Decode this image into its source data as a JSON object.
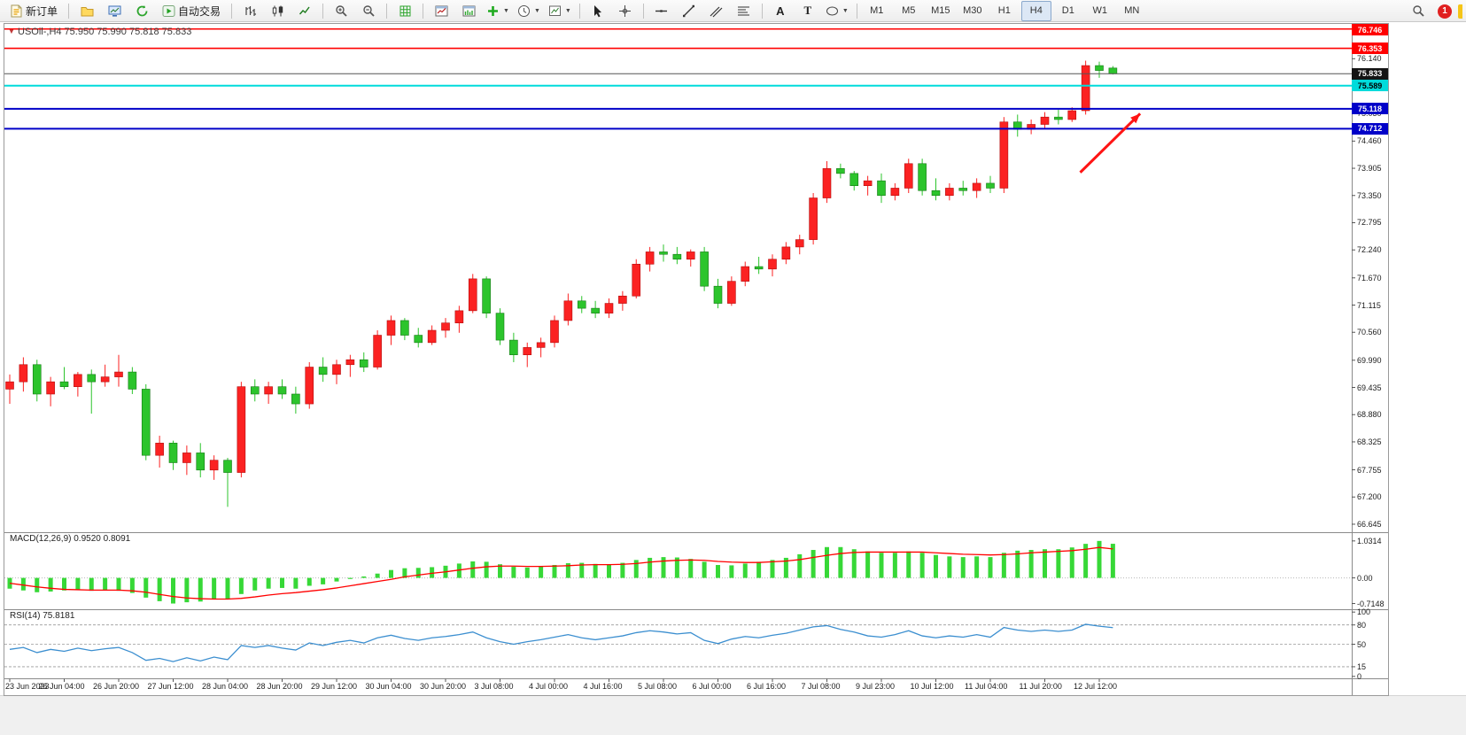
{
  "toolbar": {
    "new_order_label": "新订单",
    "auto_trading_label": "自动交易",
    "text_tool_label": "A",
    "label_tool_label": "T",
    "timeframes": [
      "M1",
      "M5",
      "M15",
      "M30",
      "H1",
      "H4",
      "D1",
      "W1",
      "MN"
    ],
    "active_timeframe": "H4",
    "notification_count": "1"
  },
  "chart_data": [
    {
      "type": "candlestick",
      "symbol": "USOil-",
      "timeframe": "H4",
      "title": "USOil-,H4 75.950 75.990 75.818 75.833",
      "ohlc_current": {
        "open": 75.95,
        "high": 75.99,
        "low": 75.818,
        "close": 75.833
      },
      "ylim": [
        66.5,
        76.85
      ],
      "up_color": "#fb2222",
      "down_color": "#2cc42c",
      "y_ticks": [
        "76.140",
        "75.585",
        "75.030",
        "74.460",
        "73.905",
        "73.350",
        "72.795",
        "72.240",
        "71.670",
        "71.115",
        "70.560",
        "69.990",
        "69.435",
        "68.880",
        "68.325",
        "67.755",
        "67.200",
        "66.645"
      ],
      "bars_per_label": 4,
      "x_labels": [
        "23 Jun 2023",
        "26 Jun 04:00",
        "26 Jun 20:00",
        "27 Jun 12:00",
        "28 Jun 04:00",
        "28 Jun 20:00",
        "29 Jun 12:00",
        "30 Jun 04:00",
        "30 Jun 20:00",
        "3 Jul 08:00",
        "4 Jul 00:00",
        "4 Jul 16:00",
        "5 Jul 08:00",
        "6 Jul 00:00",
        "6 Jul 16:00",
        "7 Jul 08:00",
        "9 Jul 23:00",
        "10 Jul 12:00",
        "11 Jul 04:00",
        "11 Jul 20:00",
        "12 Jul 12:00"
      ],
      "candles": [
        [
          69.4,
          69.7,
          69.1,
          69.55
        ],
        [
          69.55,
          70.05,
          69.35,
          69.9
        ],
        [
          69.9,
          70.0,
          69.15,
          69.3
        ],
        [
          69.3,
          69.65,
          69.05,
          69.55
        ],
        [
          69.55,
          69.85,
          69.4,
          69.45
        ],
        [
          69.45,
          69.75,
          69.25,
          69.7
        ],
        [
          69.7,
          69.8,
          68.9,
          69.55
        ],
        [
          69.55,
          69.9,
          69.45,
          69.65
        ],
        [
          69.65,
          70.1,
          69.45,
          69.75
        ],
        [
          69.75,
          69.85,
          69.3,
          69.4
        ],
        [
          69.4,
          69.5,
          67.95,
          68.05
        ],
        [
          68.05,
          68.45,
          67.8,
          68.3
        ],
        [
          68.3,
          68.35,
          67.75,
          67.9
        ],
        [
          67.9,
          68.25,
          67.65,
          68.1
        ],
        [
          68.1,
          68.3,
          67.6,
          67.75
        ],
        [
          67.75,
          68.05,
          67.55,
          67.95
        ],
        [
          67.95,
          68.0,
          67.0,
          67.7
        ],
        [
          67.7,
          69.55,
          67.6,
          69.45
        ],
        [
          69.45,
          69.6,
          69.15,
          69.3
        ],
        [
          69.3,
          69.55,
          69.1,
          69.45
        ],
        [
          69.45,
          69.6,
          69.2,
          69.3
        ],
        [
          69.3,
          69.45,
          68.9,
          69.1
        ],
        [
          69.1,
          69.95,
          69.0,
          69.85
        ],
        [
          69.85,
          70.05,
          69.55,
          69.7
        ],
        [
          69.7,
          70.0,
          69.5,
          69.9
        ],
        [
          69.9,
          70.1,
          69.65,
          70.0
        ],
        [
          70.0,
          70.15,
          69.75,
          69.85
        ],
        [
          69.85,
          70.6,
          69.8,
          70.5
        ],
        [
          70.5,
          70.9,
          70.3,
          70.8
        ],
        [
          70.8,
          70.85,
          70.4,
          70.5
        ],
        [
          70.5,
          70.65,
          70.25,
          70.35
        ],
        [
          70.35,
          70.7,
          70.3,
          70.6
        ],
        [
          70.6,
          70.85,
          70.45,
          70.75
        ],
        [
          70.75,
          71.1,
          70.55,
          71.0
        ],
        [
          71.0,
          71.75,
          70.95,
          71.65
        ],
        [
          71.65,
          71.7,
          70.85,
          70.95
        ],
        [
          70.95,
          71.05,
          70.3,
          70.4
        ],
        [
          70.4,
          70.55,
          69.95,
          70.1
        ],
        [
          70.1,
          70.35,
          69.85,
          70.25
        ],
        [
          70.25,
          70.45,
          70.05,
          70.35
        ],
        [
          70.35,
          70.9,
          70.25,
          70.8
        ],
        [
          70.8,
          71.35,
          70.7,
          71.2
        ],
        [
          71.2,
          71.3,
          70.95,
          71.05
        ],
        [
          71.05,
          71.2,
          70.85,
          70.95
        ],
        [
          70.95,
          71.25,
          70.85,
          71.15
        ],
        [
          71.15,
          71.4,
          71.0,
          71.3
        ],
        [
          71.3,
          72.05,
          71.25,
          71.95
        ],
        [
          71.95,
          72.3,
          71.8,
          72.2
        ],
        [
          72.2,
          72.35,
          72.0,
          72.15
        ],
        [
          72.15,
          72.3,
          71.95,
          72.05
        ],
        [
          72.05,
          72.25,
          71.9,
          72.2
        ],
        [
          72.2,
          72.3,
          71.4,
          71.5
        ],
        [
          71.5,
          71.65,
          71.05,
          71.15
        ],
        [
          71.15,
          71.7,
          71.1,
          71.6
        ],
        [
          71.6,
          72.0,
          71.5,
          71.9
        ],
        [
          71.9,
          72.1,
          71.75,
          71.85
        ],
        [
          71.85,
          72.15,
          71.7,
          72.05
        ],
        [
          72.05,
          72.4,
          71.95,
          72.3
        ],
        [
          72.3,
          72.55,
          72.15,
          72.45
        ],
        [
          72.45,
          73.4,
          72.35,
          73.3
        ],
        [
          73.3,
          74.05,
          73.2,
          73.9
        ],
        [
          73.9,
          74.0,
          73.7,
          73.8
        ],
        [
          73.8,
          73.85,
          73.45,
          73.55
        ],
        [
          73.55,
          73.75,
          73.35,
          73.65
        ],
        [
          73.65,
          73.8,
          73.2,
          73.35
        ],
        [
          73.35,
          73.6,
          73.25,
          73.5
        ],
        [
          73.5,
          74.1,
          73.4,
          74.0
        ],
        [
          74.0,
          74.1,
          73.35,
          73.45
        ],
        [
          73.45,
          73.7,
          73.25,
          73.35
        ],
        [
          73.35,
          73.6,
          73.25,
          73.5
        ],
        [
          73.5,
          73.65,
          73.35,
          73.45
        ],
        [
          73.45,
          73.7,
          73.3,
          73.6
        ],
        [
          73.6,
          73.75,
          73.4,
          73.5
        ],
        [
          73.5,
          74.95,
          73.4,
          74.85
        ],
        [
          74.85,
          75.0,
          74.55,
          74.7
        ],
        [
          74.7,
          74.9,
          74.6,
          74.8
        ],
        [
          74.8,
          75.05,
          74.7,
          74.95
        ],
        [
          74.95,
          75.1,
          74.8,
          74.9
        ],
        [
          74.9,
          75.15,
          74.85,
          75.08
        ],
        [
          75.08,
          76.1,
          75.0,
          76.0
        ],
        [
          76.0,
          76.08,
          75.75,
          75.9
        ],
        [
          75.95,
          75.99,
          75.818,
          75.833
        ]
      ],
      "hlines": [
        {
          "price": 76.746,
          "label": "76.746",
          "color": "#ff0000",
          "width": 1.6,
          "label_bg": "#ff0000",
          "label_fg": "#ffffff"
        },
        {
          "price": 76.353,
          "label": "76.353",
          "color": "#ff0000",
          "width": 1.6,
          "label_bg": "#ff0000",
          "label_fg": "#ffffff"
        },
        {
          "price": 75.589,
          "label": "75.589",
          "color": "#00dbdb",
          "width": 2,
          "label_bg": "#00dbdb",
          "label_fg": "#000000"
        },
        {
          "price": 75.118,
          "label": "75.118",
          "color": "#0000c8",
          "width": 2,
          "label_bg": "#0000c8",
          "label_fg": "#ffffff"
        },
        {
          "price": 74.712,
          "label": "74.712",
          "color": "#0000c8",
          "width": 2,
          "label_bg": "#0000c8",
          "label_fg": "#ffffff"
        }
      ],
      "current_price": {
        "value": 75.833,
        "label": "75.833",
        "line_color": "#555555",
        "label_bg": "#141414",
        "label_fg": "#ffffff"
      },
      "annotation": {
        "type": "arrow",
        "color": "#ff1414",
        "from": {
          "bar": 78.6,
          "price": 73.82
        },
        "to": {
          "bar": 83.0,
          "price": 75.02
        }
      }
    },
    {
      "type": "bar",
      "name": "MACD",
      "label": "MACD(12,26,9) 0.9520 0.8091",
      "params": "12,26,9",
      "value": 0.952,
      "signal_value": 0.8091,
      "ylim": [
        -0.85,
        1.25
      ],
      "y_ticks": [
        "1.0314",
        "0.00",
        "-0.7148"
      ],
      "bar_color": "#37d837",
      "signal_color": "#ff0000",
      "histogram": [
        -0.3,
        -0.35,
        -0.4,
        -0.38,
        -0.35,
        -0.33,
        -0.36,
        -0.33,
        -0.36,
        -0.42,
        -0.55,
        -0.65,
        -0.7148,
        -0.68,
        -0.66,
        -0.6,
        -0.58,
        -0.45,
        -0.35,
        -0.3,
        -0.28,
        -0.3,
        -0.22,
        -0.18,
        -0.1,
        -0.03,
        0.04,
        0.12,
        0.22,
        0.27,
        0.28,
        0.3,
        0.34,
        0.4,
        0.46,
        0.45,
        0.38,
        0.31,
        0.29,
        0.32,
        0.36,
        0.41,
        0.42,
        0.39,
        0.38,
        0.42,
        0.5,
        0.56,
        0.58,
        0.57,
        0.53,
        0.45,
        0.36,
        0.35,
        0.4,
        0.45,
        0.5,
        0.56,
        0.66,
        0.78,
        0.86,
        0.86,
        0.8,
        0.74,
        0.7,
        0.7,
        0.74,
        0.7,
        0.64,
        0.6,
        0.58,
        0.6,
        0.58,
        0.7,
        0.76,
        0.78,
        0.8,
        0.8,
        0.85,
        0.95,
        1.0314,
        0.952
      ],
      "signal": [
        -0.15,
        -0.2,
        -0.25,
        -0.29,
        -0.32,
        -0.33,
        -0.34,
        -0.34,
        -0.34,
        -0.36,
        -0.4,
        -0.46,
        -0.52,
        -0.56,
        -0.58,
        -0.59,
        -0.59,
        -0.57,
        -0.53,
        -0.48,
        -0.44,
        -0.41,
        -0.37,
        -0.33,
        -0.28,
        -0.22,
        -0.16,
        -0.1,
        -0.04,
        0.03,
        0.08,
        0.13,
        0.17,
        0.22,
        0.27,
        0.31,
        0.33,
        0.33,
        0.32,
        0.32,
        0.33,
        0.34,
        0.36,
        0.37,
        0.37,
        0.38,
        0.4,
        0.44,
        0.47,
        0.49,
        0.5,
        0.49,
        0.46,
        0.44,
        0.43,
        0.43,
        0.45,
        0.47,
        0.51,
        0.57,
        0.63,
        0.68,
        0.71,
        0.72,
        0.72,
        0.72,
        0.72,
        0.72,
        0.7,
        0.68,
        0.66,
        0.65,
        0.64,
        0.65,
        0.67,
        0.7,
        0.72,
        0.74,
        0.76,
        0.8,
        0.85,
        0.8091
      ]
    },
    {
      "type": "line",
      "name": "RSI",
      "label": "RSI(14) 75.8181",
      "period": 14,
      "value": 75.8181,
      "ylim": [
        0,
        100
      ],
      "levels": [
        80,
        50,
        15
      ],
      "y_ticks": [
        "100",
        "80",
        "50",
        "15",
        "0"
      ],
      "line_color": "#3c8fd0",
      "values": [
        42,
        45,
        37,
        42,
        39,
        44,
        40,
        43,
        45,
        37,
        25,
        28,
        23,
        29,
        24,
        30,
        26,
        48,
        45,
        48,
        44,
        41,
        52,
        48,
        53,
        56,
        52,
        60,
        64,
        59,
        56,
        60,
        62,
        65,
        69,
        60,
        54,
        50,
        54,
        57,
        61,
        65,
        60,
        57,
        60,
        63,
        68,
        71,
        69,
        66,
        68,
        56,
        51,
        58,
        62,
        60,
        64,
        67,
        72,
        77,
        79,
        73,
        69,
        63,
        61,
        65,
        71,
        63,
        60,
        63,
        61,
        65,
        61,
        76,
        72,
        70,
        72,
        70,
        72,
        81,
        78,
        75.8181
      ]
    }
  ]
}
